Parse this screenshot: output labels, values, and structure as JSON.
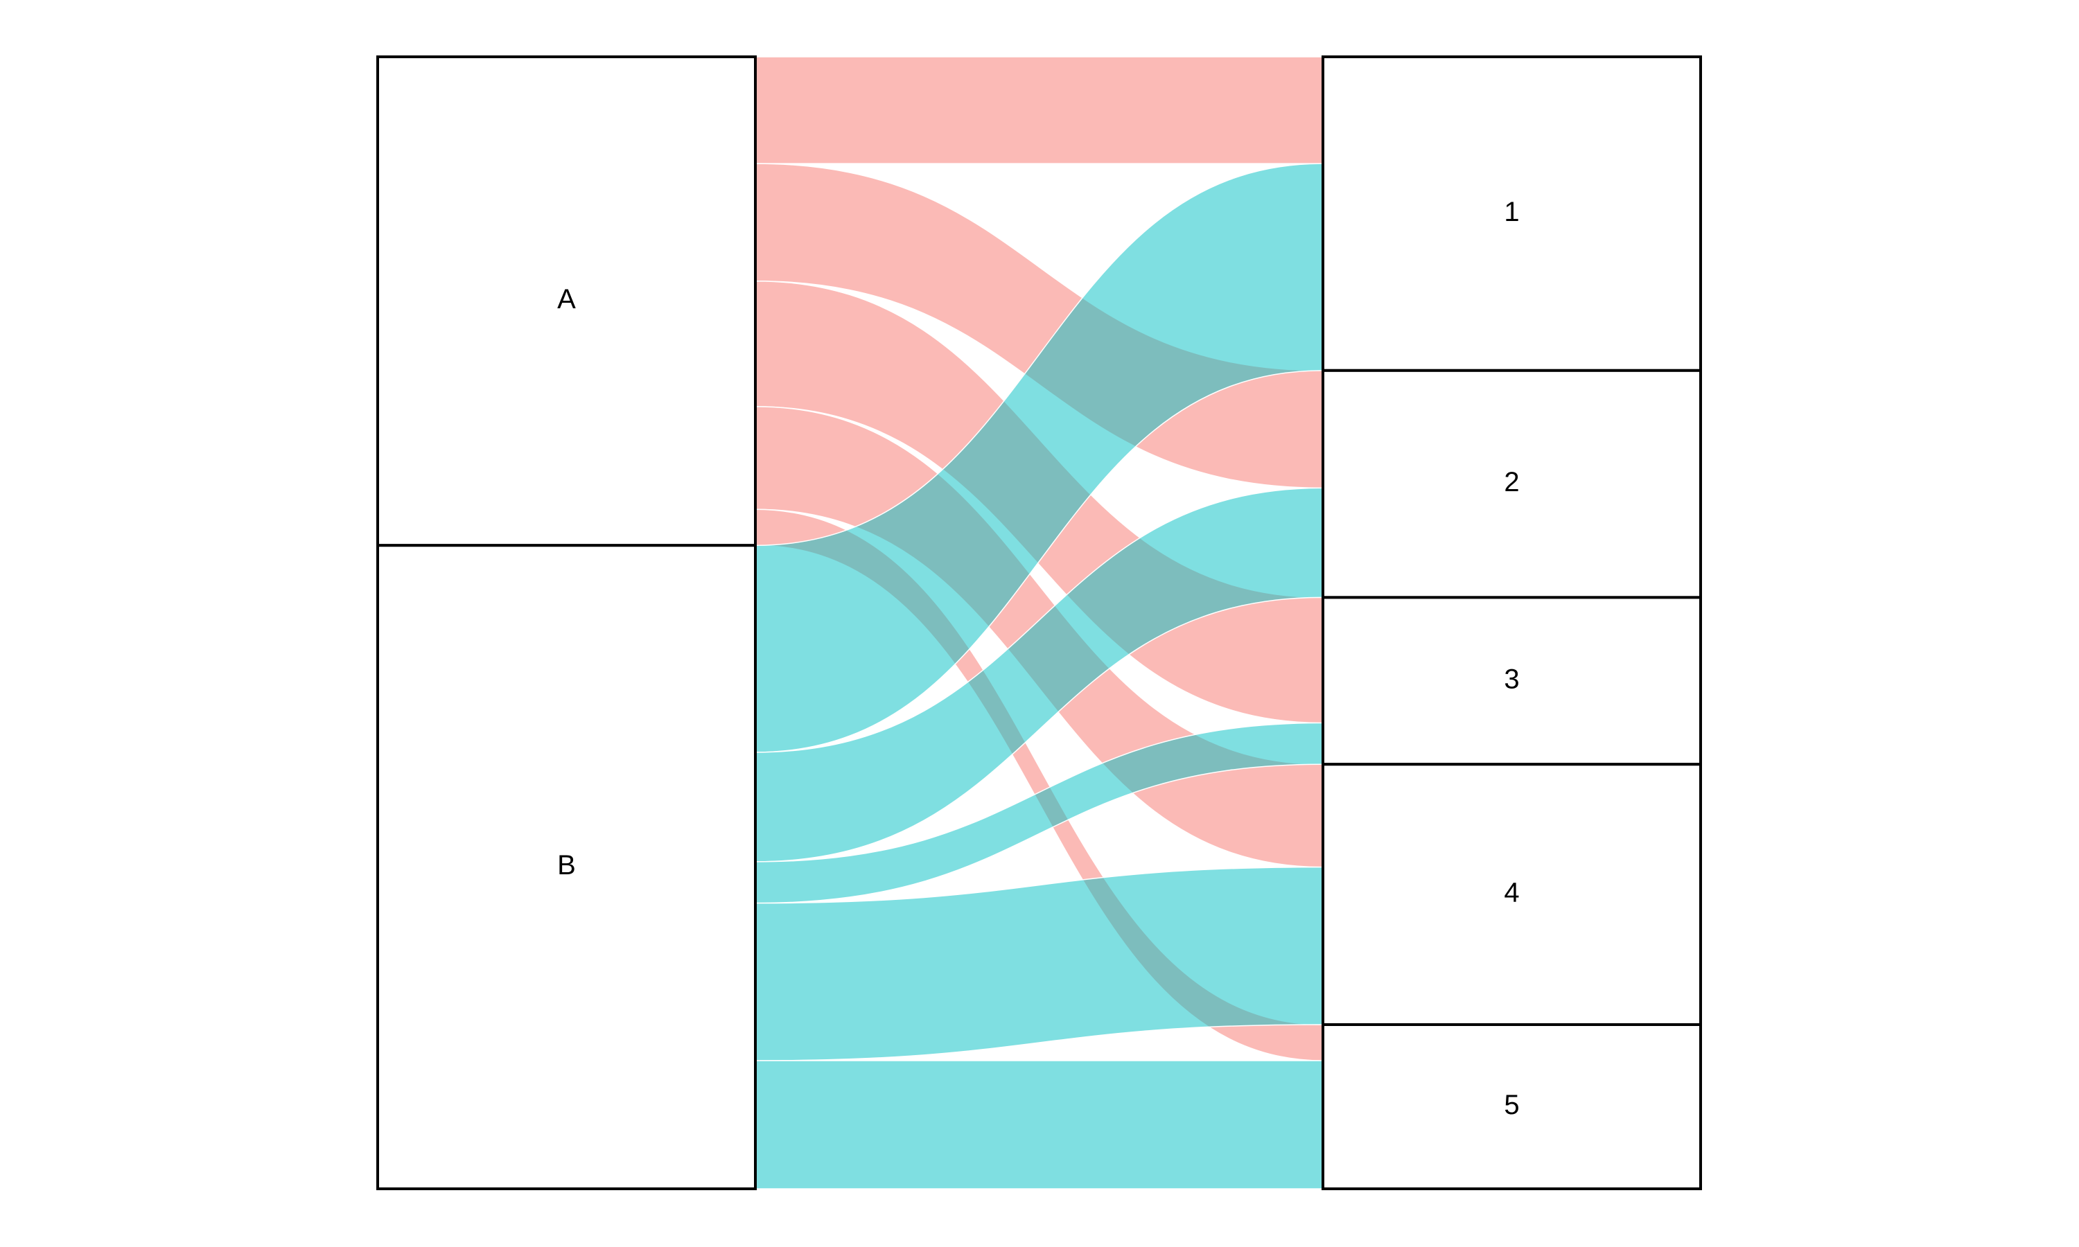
{
  "chart_data": {
    "type": "alluvial",
    "categories": [
      "1",
      "2",
      "3",
      "4",
      "5"
    ],
    "series": [
      {
        "name": "A",
        "color": "#F8766D",
        "values": [
          80,
          88,
          94,
          77,
          27
        ]
      },
      {
        "name": "B",
        "color": "#00BFC4",
        "values": [
          155,
          82,
          31,
          118,
          96
        ]
      }
    ]
  }
}
